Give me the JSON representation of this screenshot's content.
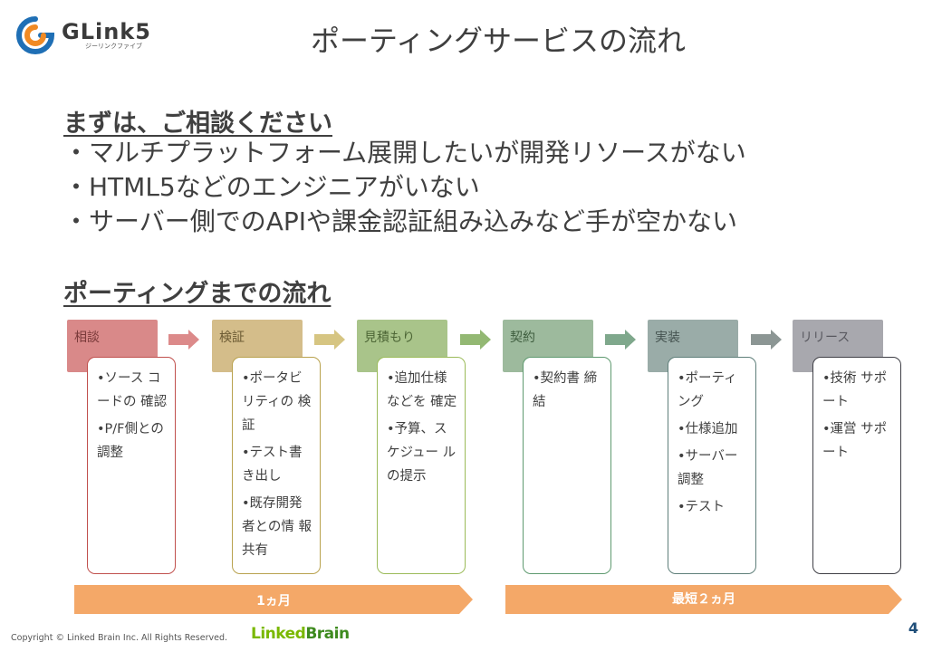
{
  "logo": {
    "name": "GLink5",
    "sub": "ジーリンクファイブ"
  },
  "title": "ポーティングサービスの流れ",
  "section1": {
    "heading": "まずは、ご相談ください",
    "bullets": [
      "・マルチプラットフォーム展開したいが開発リソースがない",
      "・HTML5などのエンジニアがいない",
      "・サーバー側でのAPIや課金認証組み込みなど手が空かない"
    ]
  },
  "section2": {
    "heading": "ポーティングまでの流れ"
  },
  "steps": [
    {
      "label": "相談",
      "color": "#d98989",
      "text": "#7a3a3a",
      "border": "#c0504d",
      "items": [
        "•ソース コードの 確認",
        "•P/F側との 調整"
      ]
    },
    {
      "label": "検証",
      "color": "#d4bd8a",
      "text": "#6b5a33",
      "border": "#b9a24e",
      "items": [
        "•ポータビ リティの 検証",
        "•テスト書 き出し",
        "•既存開発 者との情 報共有"
      ]
    },
    {
      "label": "見積もり",
      "color": "#a9c48a",
      "text": "#4d6636",
      "border": "#9bbb59",
      "items": [
        "•追加仕様 などを 確定",
        "•予算、ス ケジュー ルの提示"
      ]
    },
    {
      "label": "契約",
      "color": "#9dba9d",
      "text": "#3f5e3f",
      "border": "#5f9a70",
      "items": [
        "•契約書 締結"
      ]
    },
    {
      "label": "実装",
      "color": "#9aaca8",
      "text": "#44524f",
      "border": "#5f7f7a",
      "items": [
        "•ポーティ ング",
        "•仕様追加",
        "•サーバー 調整",
        "•テスト"
      ]
    },
    {
      "label": "リリース",
      "color": "#a8a8ae",
      "text": "#595960",
      "border": "#3f3f46",
      "items": [
        "•技術 サポート",
        "•運営 サポート"
      ]
    }
  ],
  "arrow_colors": [
    "#dc8a8a",
    "#d6c582",
    "#93b873",
    "#7fa88c",
    "#8c9694",
    "#8a8a8e"
  ],
  "timeline": [
    {
      "label": "1ヵ月"
    },
    {
      "label": "最短２ヵ月"
    }
  ],
  "timeline_color": "#f4a868",
  "footer": {
    "copyright": "Copyright © Linked Brain Inc. All Rights Reserved.",
    "brand_a": "Linked",
    "brand_b": "Brain",
    "page": "4"
  }
}
